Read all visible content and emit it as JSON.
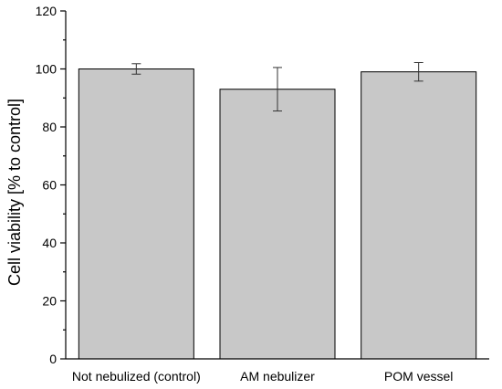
{
  "chart_data": {
    "type": "bar",
    "title": "",
    "xlabel": "",
    "ylabel": "Cell viability [% to control]",
    "ylim": [
      0,
      120
    ],
    "yticks": [
      0,
      20,
      40,
      60,
      80,
      100,
      120
    ],
    "categories": [
      "Not nebulized (control)",
      "AM nebulizer",
      "POM vessel"
    ],
    "values": [
      100,
      93,
      99
    ],
    "errors": [
      1.8,
      7.5,
      3.2
    ],
    "grid": false,
    "colors": {
      "bar": "#c8c8c8",
      "edge": "#000000"
    }
  }
}
